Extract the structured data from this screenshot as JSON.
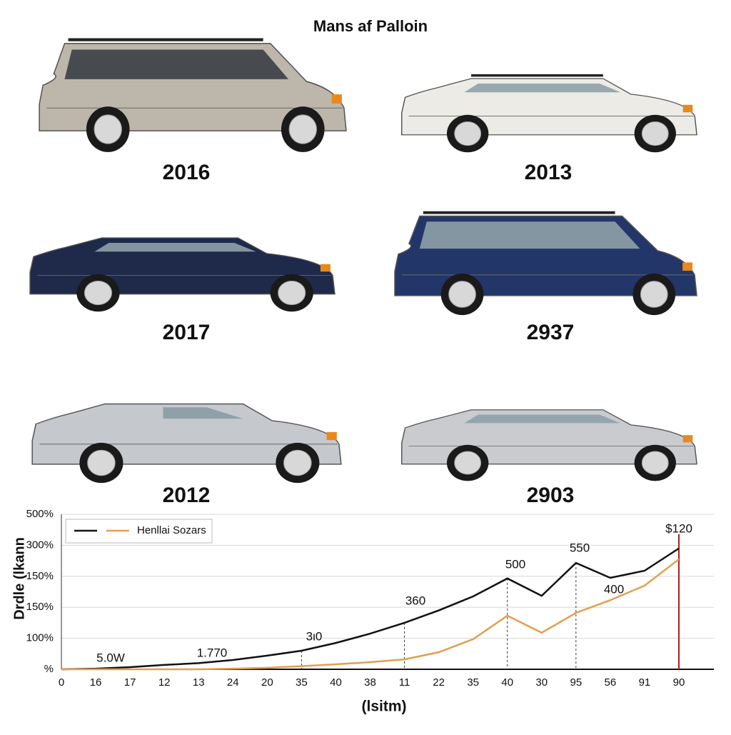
{
  "title": "Mans af Palloin",
  "cars": [
    {
      "label": "2016"
    },
    {
      "label": "2013"
    },
    {
      "label": "2017"
    },
    {
      "label": "2937"
    },
    {
      "label": "2012"
    },
    {
      "label": "2903"
    }
  ],
  "chart_data": {
    "type": "line",
    "y_label": "Drdle (lkann",
    "x_label": "(lsitm)",
    "y_categories": [
      "500%",
      "300%",
      "150%",
      "150%",
      "100%",
      "%"
    ],
    "ylim": [
      0,
      5
    ],
    "categories": [
      "0",
      "16",
      "17",
      "12",
      "13",
      "24",
      "20",
      "35",
      "40",
      "38",
      "11",
      "22",
      "35",
      "40",
      "30",
      "95",
      "56",
      "91",
      "90"
    ],
    "series": [
      {
        "color": "#111111",
        "values": [
          0,
          0.02,
          0.07,
          0.14,
          0.2,
          0.3,
          0.44,
          0.6,
          0.85,
          1.15,
          1.5,
          1.9,
          2.35,
          2.93,
          2.37,
          3.43,
          2.95,
          3.18,
          3.9
        ]
      },
      {
        "name": "Henllai Sozars",
        "color": "#e0a050",
        "values": [
          0,
          0,
          0,
          0,
          0,
          0.02,
          0.05,
          0.1,
          0.16,
          0.23,
          0.32,
          0.55,
          0.97,
          1.73,
          1.18,
          1.82,
          2.23,
          2.7,
          3.55
        ]
      }
    ],
    "annotations": [
      "5.0W",
      "1.770",
      "3ι0",
      "360",
      "500",
      "550",
      "400",
      "$120"
    ],
    "grid": true
  }
}
